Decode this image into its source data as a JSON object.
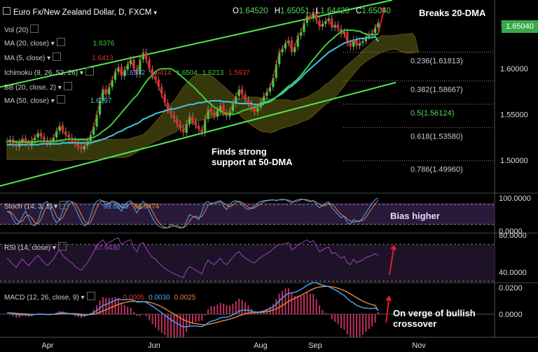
{
  "header": {
    "symbol": "Euro Fx/New Zealand Dollar, D, FXCM",
    "open_label": "O",
    "open": "1.64520",
    "high_label": "H",
    "high": "1.65051",
    "low_label": "L",
    "low": "1.64420",
    "close_label": "C",
    "close": "1.65040"
  },
  "indicators": [
    {
      "label": "Vol (20)",
      "values": []
    },
    {
      "label": "MA (20, close)",
      "values": [
        {
          "v": "1.6376",
          "color": "#3ad03a"
        }
      ]
    },
    {
      "label": "MA (5, close)",
      "values": [
        {
          "v": "1.6413",
          "color": "#e03030"
        }
      ]
    },
    {
      "label": "Ichimoku (9, 26, 52, 26)",
      "values": [
        {
          "v": "1.6372",
          "color": "#4aa8ff"
        },
        {
          "v": "1.6414",
          "color": "#e03030"
        },
        {
          "v": "1.6504",
          "color": "#3ad03a"
        },
        {
          "v": "1.6213",
          "color": "#3ad03a"
        },
        {
          "v": "1.5937",
          "color": "#e03030"
        }
      ]
    },
    {
      "label": "BB (20, close, 2)",
      "values": []
    },
    {
      "label": "MA (50, close)",
      "values": [
        {
          "v": "1.6297",
          "color": "#40c8e0"
        }
      ]
    }
  ],
  "annotations": {
    "breaks": "Breaks 20-DMA",
    "support_line1": "Finds strong",
    "support_line2": "support at 50-DMA",
    "bias": "Bias higher",
    "macd_line1": "On verge of bullish",
    "macd_line2": "crossover"
  },
  "price_box": "1.65040",
  "stoch": {
    "label": "Stoch (14, 3, 1)",
    "k": "99.6395",
    "d": "86.9474"
  },
  "rsi": {
    "label": "RSI (14, close)",
    "value": "57.9430"
  },
  "macd": {
    "label": "MACD (12, 26, close, 9)",
    "hist": "0.0005",
    "macd": "0.0030",
    "signal": "0.0025"
  },
  "colors": {
    "up": "#3ad03a",
    "down": "#e03030",
    "ma20": "#3ad03a",
    "ma50": "#40c8e0",
    "ma5": "#e03030",
    "channel": "#4fe84f",
    "fib": "#cccccc",
    "fib_mid": "#5fd35f"
  },
  "chart_data": {
    "type": "line",
    "x_labels": [
      "Apr",
      "Jun",
      "Aug",
      "Sep",
      "Nov"
    ],
    "price_axis": [
      "1.65000",
      "1.60000",
      "1.55000",
      "1.50000"
    ],
    "ylim": [
      1.465,
      1.675
    ],
    "fib_levels": [
      {
        "label": "0.236(1.61813)",
        "value": 1.61813
      },
      {
        "label": "0.382(1.58667)",
        "value": 1.58667
      },
      {
        "label": "0.5(1.56124)",
        "value": 1.56124
      },
      {
        "label": "0.618(1.53580)",
        "value": 1.5358
      },
      {
        "label": "0.786(1.49960)",
        "value": 1.4996
      }
    ],
    "close": [
      1.521,
      1.523,
      1.518,
      1.515,
      1.52,
      1.524,
      1.519,
      1.516,
      1.522,
      1.525,
      1.53,
      1.526,
      1.522,
      1.519,
      1.521,
      1.525,
      1.532,
      1.538,
      1.532,
      1.528,
      1.525,
      1.522,
      1.518,
      1.515,
      1.512,
      1.516,
      1.521,
      1.528,
      1.537,
      1.55,
      1.565,
      1.578,
      1.572,
      1.58,
      1.588,
      1.597,
      1.602,
      1.592,
      1.599,
      1.605,
      1.61,
      1.6,
      1.594,
      1.61,
      1.618,
      1.61,
      1.6,
      1.592,
      1.588,
      1.58,
      1.572,
      1.563,
      1.555,
      1.55,
      1.545,
      1.54,
      1.535,
      1.53,
      1.54,
      1.548,
      1.542,
      1.538,
      1.534,
      1.53,
      1.545,
      1.556,
      1.552,
      1.548,
      1.555,
      1.56,
      1.552,
      1.548,
      1.554,
      1.562,
      1.57,
      1.578,
      1.572,
      1.566,
      1.562,
      1.557,
      1.553,
      1.558,
      1.564,
      1.57,
      1.575,
      1.58,
      1.59,
      1.605,
      1.618,
      1.622,
      1.628,
      1.631,
      1.618,
      1.624,
      1.636,
      1.64,
      1.65,
      1.658,
      1.655,
      1.662,
      1.653,
      1.646,
      1.649,
      1.652,
      1.655,
      1.645,
      1.648,
      1.644,
      1.638,
      1.64,
      1.628,
      1.624,
      1.632,
      1.625,
      1.628,
      1.63,
      1.635,
      1.637,
      1.639,
      1.645,
      1.6504
    ],
    "ma20": [
      1.521,
      1.521,
      1.521,
      1.52,
      1.52,
      1.52,
      1.52,
      1.52,
      1.52,
      1.52,
      1.521,
      1.521,
      1.521,
      1.521,
      1.521,
      1.521,
      1.521,
      1.522,
      1.522,
      1.523,
      1.523,
      1.523,
      1.523,
      1.523,
      1.523,
      1.523,
      1.523,
      1.524,
      1.525,
      1.527,
      1.529,
      1.532,
      1.534,
      1.537,
      1.54,
      1.544,
      1.548,
      1.552,
      1.556,
      1.56,
      1.564,
      1.568,
      1.571,
      1.576,
      1.581,
      1.586,
      1.59,
      1.593,
      1.597,
      1.599,
      1.6,
      1.6,
      1.6,
      1.6,
      1.598,
      1.596,
      1.593,
      1.59,
      1.587,
      1.584,
      1.581,
      1.578,
      1.574,
      1.571,
      1.567,
      1.564,
      1.561,
      1.558,
      1.556,
      1.554,
      1.552,
      1.551,
      1.551,
      1.55,
      1.551,
      1.552,
      1.554,
      1.555,
      1.556,
      1.557,
      1.558,
      1.559,
      1.56,
      1.562,
      1.563,
      1.564,
      1.566,
      1.569,
      1.572,
      1.575,
      1.578,
      1.581,
      1.583,
      1.586,
      1.589,
      1.593,
      1.597,
      1.601,
      1.606,
      1.61,
      1.614,
      1.618,
      1.622,
      1.626,
      1.629,
      1.632,
      1.635,
      1.638,
      1.64,
      1.642,
      1.642,
      1.642,
      1.642,
      1.641,
      1.641,
      1.639,
      1.638,
      1.637,
      1.637,
      1.637,
      1.638
    ],
    "ma50": [
      1.517,
      1.517,
      1.517,
      1.517,
      1.517,
      1.517,
      1.517,
      1.517,
      1.517,
      1.517,
      1.517,
      1.518,
      1.518,
      1.518,
      1.518,
      1.518,
      1.518,
      1.518,
      1.519,
      1.519,
      1.519,
      1.519,
      1.519,
      1.519,
      1.519,
      1.519,
      1.519,
      1.519,
      1.52,
      1.521,
      1.522,
      1.523,
      1.524,
      1.526,
      1.527,
      1.529,
      1.531,
      1.532,
      1.534,
      1.536,
      1.537,
      1.539,
      1.54,
      1.542,
      1.545,
      1.546,
      1.548,
      1.549,
      1.551,
      1.552,
      1.553,
      1.554,
      1.555,
      1.556,
      1.556,
      1.557,
      1.558,
      1.559,
      1.56,
      1.561,
      1.561,
      1.562,
      1.563,
      1.563,
      1.564,
      1.564,
      1.565,
      1.565,
      1.565,
      1.565,
      1.564,
      1.564,
      1.564,
      1.563,
      1.563,
      1.562,
      1.562,
      1.562,
      1.562,
      1.562,
      1.561,
      1.561,
      1.562,
      1.563,
      1.564,
      1.565,
      1.567,
      1.569,
      1.571,
      1.573,
      1.576,
      1.579,
      1.581,
      1.584,
      1.587,
      1.59,
      1.594,
      1.597,
      1.6,
      1.603,
      1.606,
      1.609,
      1.612,
      1.615,
      1.618,
      1.62,
      1.622,
      1.624,
      1.626,
      1.628,
      1.629,
      1.63,
      1.631,
      1.632,
      1.633,
      1.633,
      1.634,
      1.634,
      1.634,
      1.635,
      1.6297
    ],
    "stoch_k": [
      60,
      55,
      35,
      20,
      25,
      45,
      60,
      40,
      20,
      15,
      30,
      60,
      85,
      90,
      70,
      40,
      25,
      35,
      60,
      85,
      92,
      88,
      70,
      50,
      30,
      15,
      20,
      45,
      75,
      90,
      95,
      90,
      80,
      85,
      92,
      88,
      70,
      60,
      80,
      88,
      92,
      70,
      55,
      75,
      90,
      80,
      60,
      40,
      25,
      15,
      10,
      8,
      10,
      20,
      15,
      12,
      8,
      10,
      30,
      50,
      45,
      40,
      35,
      60,
      85,
      90,
      80,
      85,
      90,
      92,
      75,
      65,
      80,
      90,
      92,
      88,
      80,
      70,
      65,
      70,
      75,
      85,
      90,
      92,
      93,
      94,
      95,
      92,
      95,
      96,
      95,
      90,
      85,
      92,
      95,
      97,
      95,
      92,
      88,
      93,
      80,
      70,
      78,
      85,
      88,
      70,
      60,
      50,
      40,
      45,
      25,
      20,
      35,
      30,
      28,
      40,
      55,
      70,
      85,
      95,
      99.6
    ],
    "rsi": [
      55,
      52,
      48,
      45,
      50,
      54,
      50,
      47,
      51,
      55,
      58,
      54,
      50,
      47,
      50,
      54,
      60,
      64,
      58,
      55,
      52,
      50,
      46,
      44,
      42,
      46,
      50,
      56,
      62,
      68,
      72,
      75,
      70,
      72,
      74,
      76,
      77,
      70,
      72,
      74,
      75,
      66,
      62,
      70,
      72,
      66,
      60,
      56,
      54,
      50,
      47,
      44,
      42,
      40,
      38,
      37,
      35,
      34,
      42,
      46,
      44,
      42,
      40,
      38,
      47,
      53,
      50,
      48,
      52,
      55,
      50,
      48,
      52,
      56,
      60,
      62,
      58,
      55,
      53,
      51,
      50,
      53,
      56,
      58,
      60,
      62,
      65,
      68,
      70,
      70,
      71,
      72,
      64,
      66,
      70,
      71,
      73,
      75,
      72,
      74,
      68,
      62,
      64,
      66,
      67,
      60,
      61,
      58,
      55,
      57,
      50,
      48,
      54,
      50,
      52,
      53,
      56,
      57,
      58,
      60,
      57.9
    ],
    "macd": [
      0.001,
      0.0008,
      0.0004,
      -0.0002,
      -0.0004,
      -0.0002,
      -0.0003,
      -0.0006,
      -0.0006,
      -0.0003,
      0.0001,
      0.0001,
      -0.0001,
      -0.0003,
      -0.0003,
      -0.0001,
      0.0004,
      0.001,
      0.0011,
      0.0009,
      0.0006,
      0.0003,
      -0.0001,
      -0.0005,
      -0.0009,
      -0.0009,
      -0.0006,
      0.0001,
      0.0011,
      0.0027,
      0.0047,
      0.0066,
      0.0073,
      0.0083,
      0.0094,
      0.0105,
      0.0113,
      0.0109,
      0.0109,
      0.011,
      0.0111,
      0.0103,
      0.0092,
      0.0092,
      0.0095,
      0.0089,
      0.0075,
      0.006,
      0.0045,
      0.0028,
      0.001,
      -0.0008,
      -0.0026,
      -0.0042,
      -0.0057,
      -0.007,
      -0.0083,
      -0.0095,
      -0.0095,
      -0.009,
      -0.0089,
      -0.0089,
      -0.0091,
      -0.0093,
      -0.0082,
      -0.0064,
      -0.0053,
      -0.0048,
      -0.0038,
      -0.0027,
      -0.0023,
      -0.0022,
      -0.0016,
      -0.0005,
      0.0009,
      0.0024,
      0.003,
      0.0031,
      0.0029,
      0.0024,
      0.0017,
      0.0016,
      0.0019,
      0.0025,
      0.0033,
      0.0042,
      0.0055,
      0.0076,
      0.0101,
      0.0122,
      0.0142,
      0.0158,
      0.016,
      0.0164,
      0.0175,
      0.0186,
      0.0201,
      0.0219,
      0.0228,
      0.0239,
      0.0236,
      0.0226,
      0.0218,
      0.0212,
      0.0208,
      0.0194,
      0.0184,
      0.0171,
      0.0154,
      0.0141,
      0.0118,
      0.0097,
      0.0085,
      0.0068,
      0.0057,
      0.0049,
      0.0046,
      0.0044,
      0.0043,
      0.0047,
      0.003
    ],
    "macd_signal": [
      0.001,
      0.001,
      0.0009,
      0.0007,
      0.0004,
      0.0003,
      0.0002,
      0,
      -0.0001,
      -0.0001,
      -0.0001,
      0,
      0,
      -0.0001,
      -0.0001,
      -0.0001,
      0,
      0.0002,
      0.0004,
      0.0005,
      0.0005,
      0.0005,
      0.0004,
      0.0002,
      0,
      -0.0002,
      -0.0003,
      -0.0002,
      0,
      0.0006,
      0.0014,
      0.0025,
      0.0034,
      0.0044,
      0.0054,
      0.0064,
      0.0074,
      0.0081,
      0.0087,
      0.0092,
      0.0096,
      0.0098,
      0.0096,
      0.0096,
      0.0095,
      0.0094,
      0.009,
      0.0084,
      0.0076,
      0.0067,
      0.0055,
      0.0042,
      0.0028,
      0.0014,
      0,
      -0.0014,
      -0.0028,
      -0.0041,
      -0.0052,
      -0.006,
      -0.0066,
      -0.0071,
      -0.0074,
      -0.0078,
      -0.0079,
      -0.0076,
      -0.0072,
      -0.0067,
      -0.0061,
      -0.0054,
      -0.0048,
      -0.0043,
      -0.0037,
      -0.003,
      -0.0022,
      -0.0013,
      -0.0004,
      0.0003,
      0.0008,
      0.0011,
      0.0012,
      0.0013,
      0.0014,
      0.0016,
      0.002,
      0.0024,
      0.0031,
      0.004,
      0.0052,
      0.0066,
      0.0081,
      0.0096,
      0.0109,
      0.012,
      0.0131,
      0.0142,
      0.0154,
      0.0167,
      0.0179,
      0.0191,
      0.02,
      0.0205,
      0.0208,
      0.0209,
      0.0209,
      0.0206,
      0.0202,
      0.0195,
      0.0187,
      0.0178,
      0.0166,
      0.0152,
      0.0139,
      0.0124,
      0.0111,
      0.0098,
      0.0088,
      0.0079,
      0.0072,
      0.0067,
      0.0025
    ]
  }
}
